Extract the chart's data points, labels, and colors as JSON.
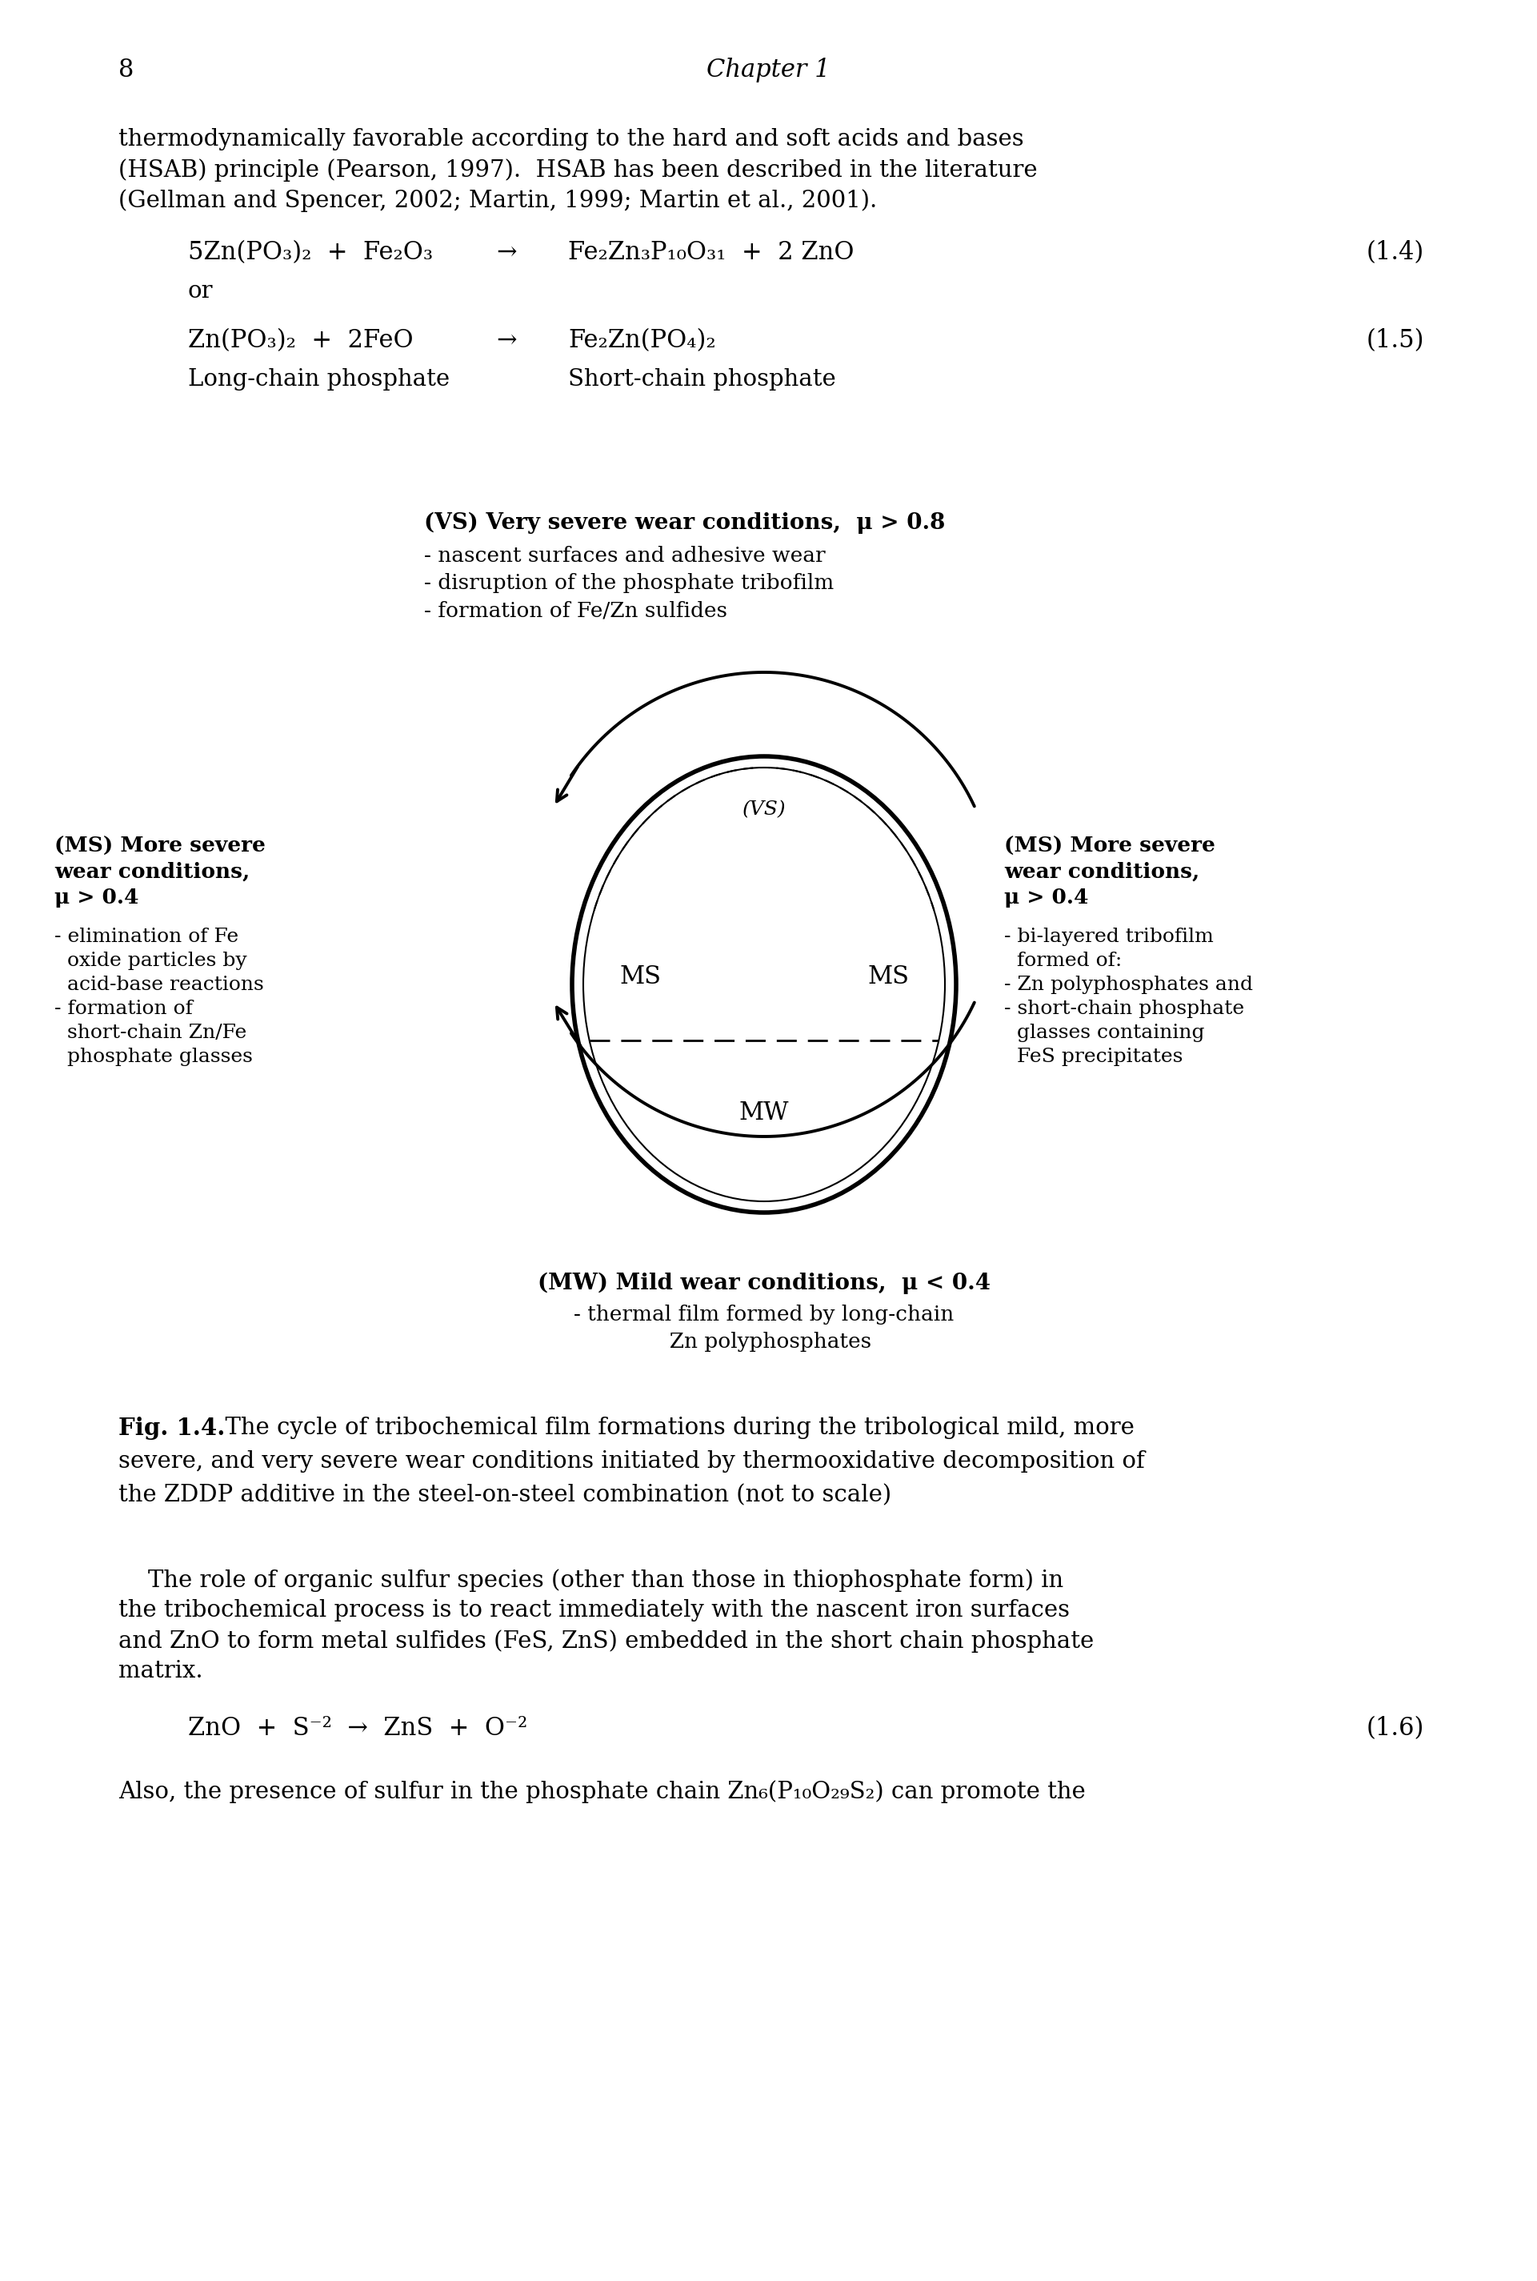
{
  "page_number": "8",
  "chapter_header": "Chapter 1",
  "bg_color": "#ffffff",
  "text_color": "#000000",
  "body_text_1a": "thermodynamically favorable according to the hard and soft acids and bases",
  "body_text_1b": "(HSAB) principle (Pearson, 1997).  HSAB has been described in the literature",
  "body_text_1c": "(Gellman and Spencer, 2002; Martin, 1999; Martin et al., 2001).",
  "eq1_left": "5Zn(PO₃)₂  +  Fe₂O₃",
  "eq1_arrow": "→",
  "eq1_right": "Fe₂Zn₃P₁₀O₃₁  +  2 ZnO",
  "eq1_num": "(1.4)",
  "eq1_or": "or",
  "eq2_left": "Zn(PO₃)₂  +  2FeO",
  "eq2_arrow": "→",
  "eq2_right": "Fe₂Zn(PO₄)₂",
  "eq2_num": "(1.5)",
  "eq2_label_left": "Long-chain phosphate",
  "eq2_label_right": "Short-chain phosphate",
  "vs_title": "(VS) Very severe wear conditions,  μ > 0.8",
  "vs_b1": "- nascent surfaces and adhesive wear",
  "vs_b2": "- disruption of the phosphate tribofilm",
  "vs_b3": "- formation of Fe/Zn sulfides",
  "ms_left_t1": "(MS) More severe",
  "ms_left_t2": "wear conditions,",
  "ms_left_t3": "μ > 0.4",
  "ms_left_b1": "- elimination of Fe",
  "ms_left_b2": "  oxide particles by",
  "ms_left_b3": "  acid-base reactions",
  "ms_left_b4": "- formation of",
  "ms_left_b5": "  short-chain Zn/Fe",
  "ms_left_b6": "  phosphate glasses",
  "ms_right_t1": "(MS) More severe",
  "ms_right_t2": "wear conditions,",
  "ms_right_t3": "μ > 0.4",
  "ms_right_b1": "- bi-layered tribofilm",
  "ms_right_b2": "  formed of:",
  "ms_right_b3": "- Zn polyphosphates and",
  "ms_right_b4": "- short-chain phosphate",
  "ms_right_b5": "  glasses containing",
  "ms_right_b6": "  FeS precipitates",
  "mw_title": "(MW) Mild wear conditions,  μ < 0.4",
  "mw_b1": "- thermal film formed by long-chain",
  "mw_b2": "  Zn polyphosphates",
  "fig_bold": "Fig. 1.4.",
  "fig_rest_l1": "  The cycle of tribochemical film formations during the tribological mild, more",
  "fig_rest_l2": "severe, and very severe wear conditions initiated by thermooxidative decomposition of",
  "fig_rest_l3": "the ZDDP additive in the steel-on-steel combination (not to scale)",
  "body2_l1": "    The role of organic sulfur species (other than those in thiophosphate form) in",
  "body2_l2": "the tribochemical process is to react immediately with the nascent iron surfaces",
  "body2_l3": "and ZnO to form metal sulfides (FeS, ZnS) embedded in the short chain phosphate",
  "body2_l4": "matrix.",
  "eq3_text": "ZnO  +  S⁻²  →  ZnS  +  O⁻²",
  "eq3_num": "(1.6)",
  "body3": "Also, the presence of sulfur in the phosphate chain Zn₆(P₁₀O₂₉S₂) can promote the"
}
